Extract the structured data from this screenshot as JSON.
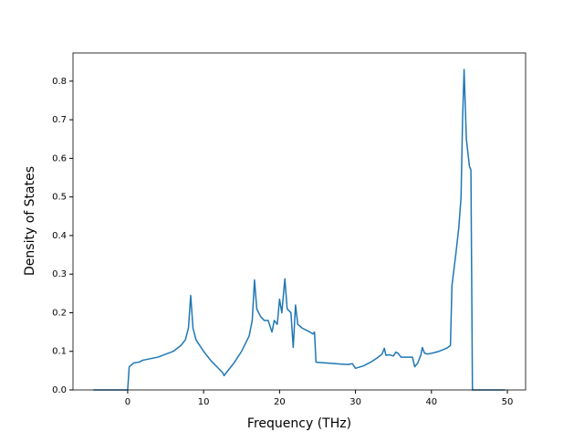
{
  "chart_data": {
    "type": "line",
    "xlabel": "Frequency (THz)",
    "ylabel": "Density of States",
    "xlim": [
      -7.2,
      52.4
    ],
    "ylim": [
      0,
      0.873
    ],
    "xticks": [
      0,
      10,
      20,
      30,
      40,
      50
    ],
    "yticks": [
      {
        "value": 0,
        "label": "0.0"
      },
      0.1,
      0.2,
      0.3,
      0.4,
      0.5,
      0.6,
      0.7,
      0.8
    ],
    "series": [
      {
        "color": "#1f77b4",
        "x": [
          -4.5,
          0,
          0.2,
          0.8,
          1.5,
          2,
          4,
          6,
          7,
          7.6,
          8,
          8.3,
          8.6,
          9,
          10,
          11,
          12,
          12.5,
          12.7,
          13,
          14,
          15,
          16,
          16.4,
          16.7,
          17,
          17.5,
          18,
          18.5,
          19,
          19.3,
          19.7,
          20,
          20.3,
          20.7,
          21,
          21.5,
          21.8,
          22.1,
          22.4,
          23,
          24,
          24.4,
          24.6,
          24.8,
          26,
          28,
          29,
          29.6,
          30,
          31,
          32,
          33,
          33.5,
          33.8,
          34,
          34.5,
          35,
          35.3,
          35.6,
          36,
          37,
          37.5,
          37.8,
          38.2,
          38.6,
          38.8,
          39.1,
          39.5,
          40,
          41,
          42,
          42.5,
          42.7,
          43.2,
          43.6,
          43.9,
          44.1,
          44.3,
          44.6,
          45,
          45.2,
          45.4,
          49.7
        ],
        "values": [
          0,
          0,
          0.06,
          0.07,
          0.072,
          0.077,
          0.085,
          0.1,
          0.115,
          0.13,
          0.16,
          0.245,
          0.16,
          0.13,
          0.1,
          0.075,
          0.055,
          0.045,
          0.037,
          0.045,
          0.07,
          0.1,
          0.14,
          0.18,
          0.285,
          0.21,
          0.19,
          0.18,
          0.18,
          0.15,
          0.18,
          0.17,
          0.235,
          0.2,
          0.288,
          0.21,
          0.2,
          0.11,
          0.22,
          0.17,
          0.16,
          0.15,
          0.145,
          0.15,
          0.072,
          0.07,
          0.067,
          0.066,
          0.068,
          0.056,
          0.062,
          0.072,
          0.085,
          0.093,
          0.108,
          0.09,
          0.091,
          0.088,
          0.098,
          0.095,
          0.085,
          0.085,
          0.085,
          0.06,
          0.07,
          0.09,
          0.11,
          0.095,
          0.093,
          0.095,
          0.1,
          0.108,
          0.115,
          0.27,
          0.35,
          0.42,
          0.5,
          0.7,
          0.83,
          0.65,
          0.58,
          0.57,
          0,
          0
        ]
      }
    ]
  }
}
